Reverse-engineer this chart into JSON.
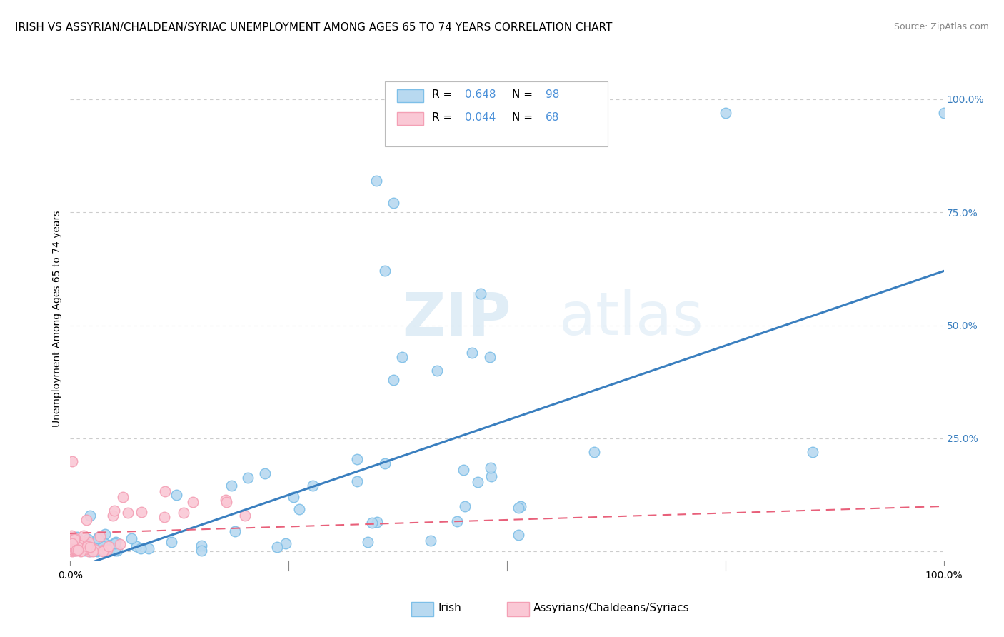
{
  "title": "IRISH VS ASSYRIAN/CHALDEAN/SYRIAC UNEMPLOYMENT AMONG AGES 65 TO 74 YEARS CORRELATION CHART",
  "source": "Source: ZipAtlas.com",
  "ylabel": "Unemployment Among Ages 65 to 74 years",
  "xlim": [
    0,
    1
  ],
  "ylim": [
    -0.02,
    1.05
  ],
  "yticks": [
    0,
    0.25,
    0.5,
    0.75,
    1.0
  ],
  "ytick_labels": [
    "",
    "25.0%",
    "50.0%",
    "75.0%",
    "100.0%"
  ],
  "irish_R": 0.648,
  "irish_N": 98,
  "assyrian_R": 0.044,
  "assyrian_N": 68,
  "irish_color": "#7dbfe8",
  "irish_fill": "#b8d9f0",
  "assyrian_color": "#f4a0b5",
  "assyrian_fill": "#fac8d5",
  "trend_irish_color": "#3a7fbf",
  "trend_assyrian_color": "#e8607a",
  "trend_irish_label_color": "#4a90d9",
  "watermark_color": "#d8e8f5",
  "background_color": "#ffffff",
  "grid_color": "#cccccc",
  "title_fontsize": 11,
  "axis_fontsize": 10,
  "legend_fontsize": 11,
  "irish_trend_slope": 0.66,
  "irish_trend_intercept": -0.04,
  "assyrian_trend_slope": 0.06,
  "assyrian_trend_intercept": 0.04
}
